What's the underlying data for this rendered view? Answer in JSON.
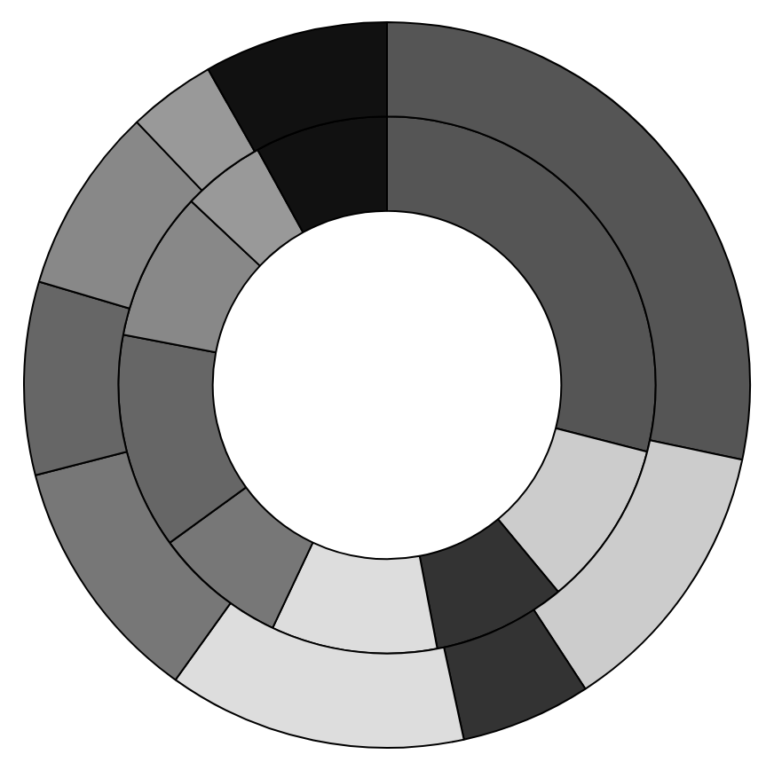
{
  "chart_data": {
    "type": "donut",
    "categories": [
      null,
      null,
      null,
      null,
      null,
      null,
      null,
      null,
      null
    ],
    "series": [
      {
        "values": [
          28.3,
          12.5,
          5.8,
          13.3,
          11.1,
          8.6,
          8.3,
          3.9,
          8.2
        ],
        "colors": [
          "#555555",
          "#cccccc",
          "#333333",
          "#dddddd",
          "#777777",
          "#666666",
          "#888888",
          "#999999",
          "#111111"
        ]
      },
      {
        "values": [
          29,
          10,
          8,
          10,
          8,
          13,
          9,
          5,
          8
        ],
        "colors": [
          "#555555",
          "#cccccc",
          "#333333",
          "#dddddd",
          "#777777",
          "#666666",
          "#888888",
          "#999999",
          "#111111"
        ]
      }
    ],
    "legend": false
  }
}
